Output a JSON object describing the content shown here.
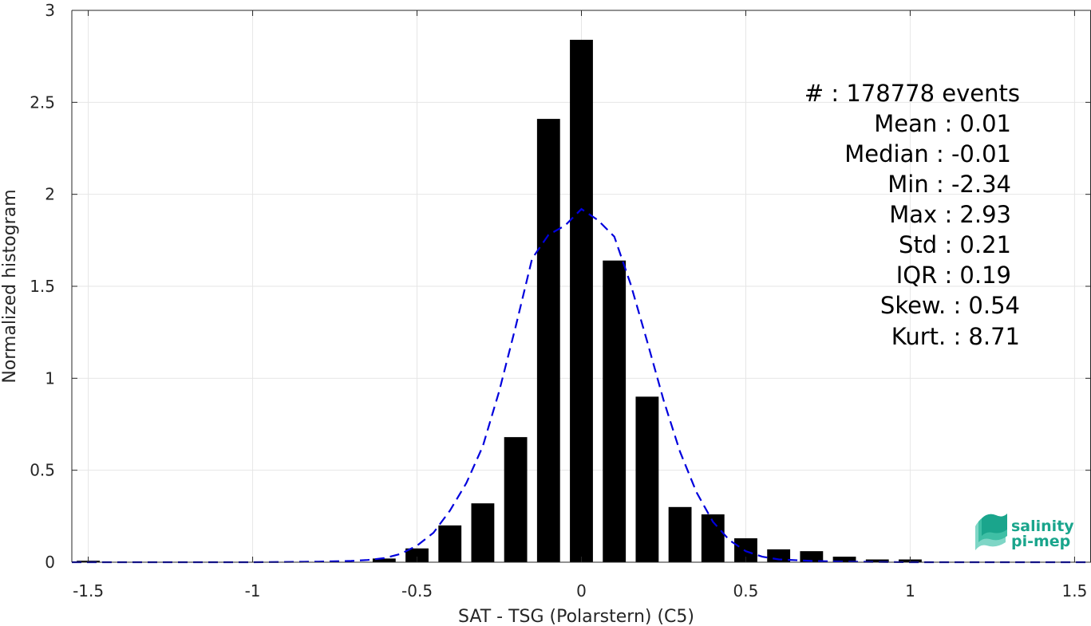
{
  "chart_data": {
    "type": "bar",
    "xlabel": "SAT - TSG (Polarstern) (C5)",
    "ylabel": "Normalized histogram",
    "xlim": [
      -1.55,
      1.55
    ],
    "ylim": [
      0,
      3
    ],
    "grid": true,
    "x_ticks": [
      "-1.5",
      "-1",
      "-0.5",
      "0",
      "0.5",
      "1",
      "1.5"
    ],
    "y_ticks": [
      "0",
      "0.5",
      "1",
      "1.5",
      "2",
      "2.5",
      "3"
    ],
    "bar_color": "#000000",
    "bar_width": 0.07,
    "series": [
      {
        "type": "bar",
        "x": [
          -1.5,
          -0.6,
          -0.5,
          -0.4,
          -0.3,
          -0.2,
          -0.1,
          0.0,
          0.1,
          0.2,
          0.3,
          0.4,
          0.5,
          0.6,
          0.7,
          0.8,
          0.9,
          1.0
        ],
        "values": [
          0.008,
          0.02,
          0.075,
          0.2,
          0.32,
          0.68,
          2.41,
          2.84,
          1.64,
          0.9,
          0.3,
          0.26,
          0.13,
          0.07,
          0.06,
          0.03,
          0.015,
          0.015
        ]
      },
      {
        "type": "line",
        "style": "dashed",
        "color": "#0000dd",
        "x": [
          -1.55,
          -1.3,
          -1.0,
          -0.8,
          -0.7,
          -0.65,
          -0.6,
          -0.55,
          -0.5,
          -0.45,
          -0.4,
          -0.35,
          -0.3,
          -0.25,
          -0.2,
          -0.15,
          -0.1,
          -0.05,
          0.0,
          0.05,
          0.1,
          0.15,
          0.2,
          0.25,
          0.3,
          0.35,
          0.4,
          0.45,
          0.5,
          0.55,
          0.6,
          0.7,
          0.8,
          1.0,
          1.3,
          1.55
        ],
        "values": [
          0,
          0,
          0,
          0.003,
          0.007,
          0.012,
          0.022,
          0.045,
          0.09,
          0.16,
          0.28,
          0.43,
          0.63,
          0.93,
          1.28,
          1.65,
          1.78,
          1.83,
          1.92,
          1.86,
          1.77,
          1.51,
          1.2,
          0.88,
          0.6,
          0.38,
          0.22,
          0.12,
          0.06,
          0.03,
          0.015,
          0.007,
          0.003,
          0,
          0,
          0
        ]
      }
    ],
    "annotations": [
      {
        "label": "#",
        "value": ": 178778 events"
      },
      {
        "label": "Mean",
        "value": ": 0.01"
      },
      {
        "label": "Median",
        "value": ": -0.01"
      },
      {
        "label": "Min",
        "value": ": -2.34"
      },
      {
        "label": "Max",
        "value": ": 2.93"
      },
      {
        "label": "Std",
        "value": ": 0.21"
      },
      {
        "label": "IQR",
        "value": ": 0.19"
      },
      {
        "label": "Skew.",
        "value": ": 0.54"
      },
      {
        "label": "Kurt.",
        "value": ": 8.71"
      }
    ]
  },
  "logo": {
    "line1": "salinity",
    "line2": "pi-mep",
    "color": "#1aa58c"
  }
}
